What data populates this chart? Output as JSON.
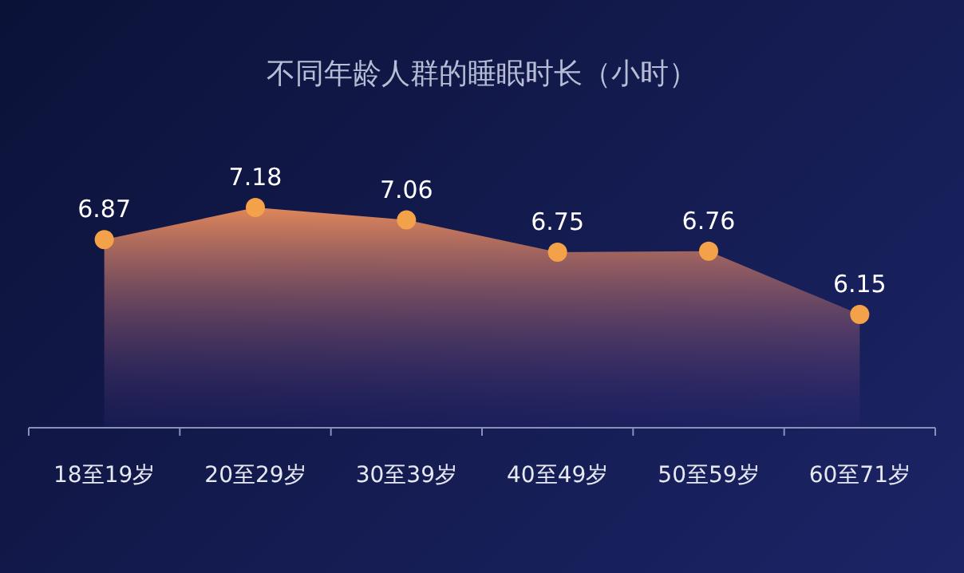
{
  "chart_data": {
    "type": "area",
    "title": "不同年龄人群的睡眠时长（小时）",
    "categories": [
      "18至19岁",
      "20至29岁",
      "30至39岁",
      "40至49岁",
      "50至59岁",
      "60至71岁"
    ],
    "values": [
      6.87,
      7.18,
      7.06,
      6.75,
      6.76,
      6.15
    ],
    "color": "#e0865a",
    "data_labels": true,
    "marker": "circle"
  }
}
